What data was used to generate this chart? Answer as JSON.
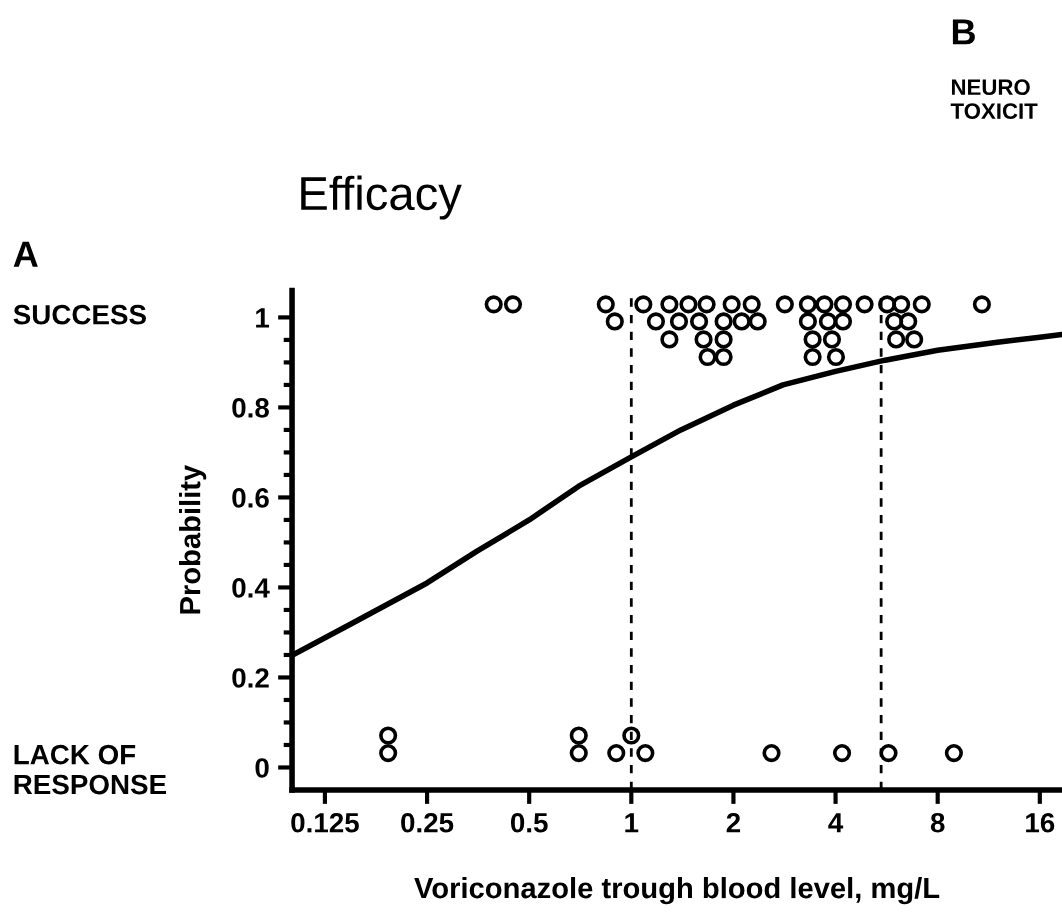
{
  "chart_data": {
    "type": "scatter",
    "title": "Efficacy",
    "xlabel": "Voriconazole trough blood level, mg/L",
    "ylabel": "Probability",
    "log": "x",
    "xlim": [
      0.1,
      18.6
    ],
    "xticks": [
      0.125,
      0.25,
      0.5,
      1,
      2,
      4,
      8,
      16
    ],
    "ylim": [
      -0.05,
      1.06
    ],
    "yticks": [
      0,
      0.2,
      0.4,
      0.6,
      0.8,
      1
    ],
    "grid": false,
    "legend": false,
    "series": [
      {
        "marker": "circle",
        "color": "#000000",
        "x": [
          0.393,
          0.448,
          0.841,
          1.085,
          1.295,
          1.474,
          1.667,
          1.976,
          2.264,
          2.835,
          3.315,
          3.709,
          4.207,
          4.871,
          5.676,
          6.244,
          7.18,
          10.8,
          0.894,
          1.182,
          1.382,
          1.584,
          1.871,
          2.115,
          2.358,
          3.315,
          3.798,
          4.207,
          5.953,
          6.55,
          1.295,
          1.633,
          1.871,
          3.423,
          3.903,
          6.035,
          6.82,
          1.678,
          1.871,
          3.423,
          4.011,
          0.192,
          0.7,
          1.0,
          0.192,
          0.7,
          0.903,
          1.1,
          2.59,
          4.18,
          5.73,
          8.93
        ],
        "values": [
          1.029,
          1.029,
          1.029,
          1.029,
          1.029,
          1.029,
          1.029,
          1.029,
          1.029,
          1.029,
          1.029,
          1.029,
          1.029,
          1.029,
          1.029,
          1.029,
          1.029,
          1.029,
          0.991,
          0.991,
          0.991,
          0.991,
          0.991,
          0.991,
          0.991,
          0.991,
          0.991,
          0.991,
          0.991,
          0.991,
          0.951,
          0.951,
          0.951,
          0.951,
          0.951,
          0.951,
          0.951,
          0.912,
          0.912,
          0.912,
          0.912,
          0.071,
          0.071,
          0.071,
          0.032,
          0.032,
          0.032,
          0.032,
          0.032,
          0.032,
          0.032,
          0.032
        ]
      },
      {
        "type": "line",
        "marker": "none",
        "line_style": "solid",
        "color": "#000000",
        "x": [
          0.1,
          0.15,
          0.25,
          0.35,
          0.5,
          0.7,
          1,
          1.4,
          2,
          2.8,
          4,
          5.6,
          8,
          12,
          16,
          18.6
        ],
        "values": [
          0.249,
          0.32,
          0.41,
          0.48,
          0.55,
          0.625,
          0.69,
          0.75,
          0.805,
          0.85,
          0.88,
          0.905,
          0.927,
          0.945,
          0.956,
          0.962
        ]
      }
    ],
    "ref_lines": [
      {
        "axis": "x",
        "value": 1,
        "line_style": "dashed",
        "color": "#000000"
      },
      {
        "axis": "x",
        "value": 5.45,
        "line_style": "dashed",
        "color": "#000000"
      }
    ],
    "annotations": [
      "A",
      "SUCCESS",
      "LACK OF\nRESPONSE",
      "B",
      "NEURO\nTOXICIT"
    ]
  }
}
